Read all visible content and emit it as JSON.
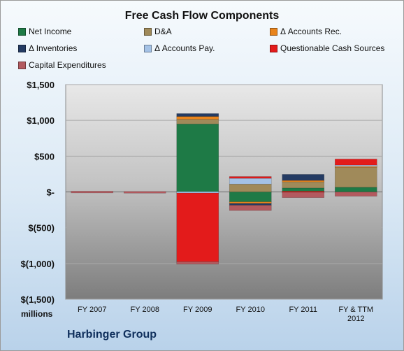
{
  "chart_data": {
    "type": "bar",
    "stacked": true,
    "title": "Free Cash Flow Components",
    "ylabel": "millions",
    "ylim": [
      -1500,
      1500
    ],
    "yticks": [
      1500,
      1000,
      500,
      0,
      -500,
      -1000,
      -1500
    ],
    "ytick_labels": [
      "$1,500",
      "$1,000",
      "$500",
      "$-",
      "$(500)",
      "$(1,000)",
      "$(1,500)"
    ],
    "categories": [
      "FY 2007",
      "FY 2008",
      "FY 2009",
      "FY 2010",
      "FY 2011",
      "FY & TTM 2012"
    ],
    "legend_position": "top",
    "series": [
      {
        "name": "Net Income",
        "color": "#1e7a46",
        "values": [
          0,
          0,
          950,
          -140,
          55,
          65
        ]
      },
      {
        "name": "D&A",
        "color": "#a08a5a",
        "values": [
          0,
          0,
          65,
          110,
          90,
          285
        ]
      },
      {
        "name": "Δ Accounts Rec.",
        "color": "#e9841c",
        "values": [
          0,
          0,
          40,
          -20,
          15,
          10
        ]
      },
      {
        "name": "Δ Inventories",
        "color": "#243b63",
        "values": [
          0,
          0,
          40,
          -25,
          85,
          0
        ]
      },
      {
        "name": "Δ Accounts Pay.",
        "color": "#a4c2e6",
        "values": [
          0,
          0,
          -15,
          80,
          0,
          15
        ]
      },
      {
        "name": "Questionable Cash Sources",
        "color": "#e31b1b",
        "values": [
          0,
          0,
          -960,
          25,
          -5,
          85
        ]
      },
      {
        "name": "Capital Expenditures",
        "color": "#b35a5f",
        "values": [
          -3,
          -10,
          -35,
          -75,
          -75,
          -60
        ]
      }
    ]
  },
  "footer": {
    "company": "Harbinger Group",
    "units": "millions"
  }
}
